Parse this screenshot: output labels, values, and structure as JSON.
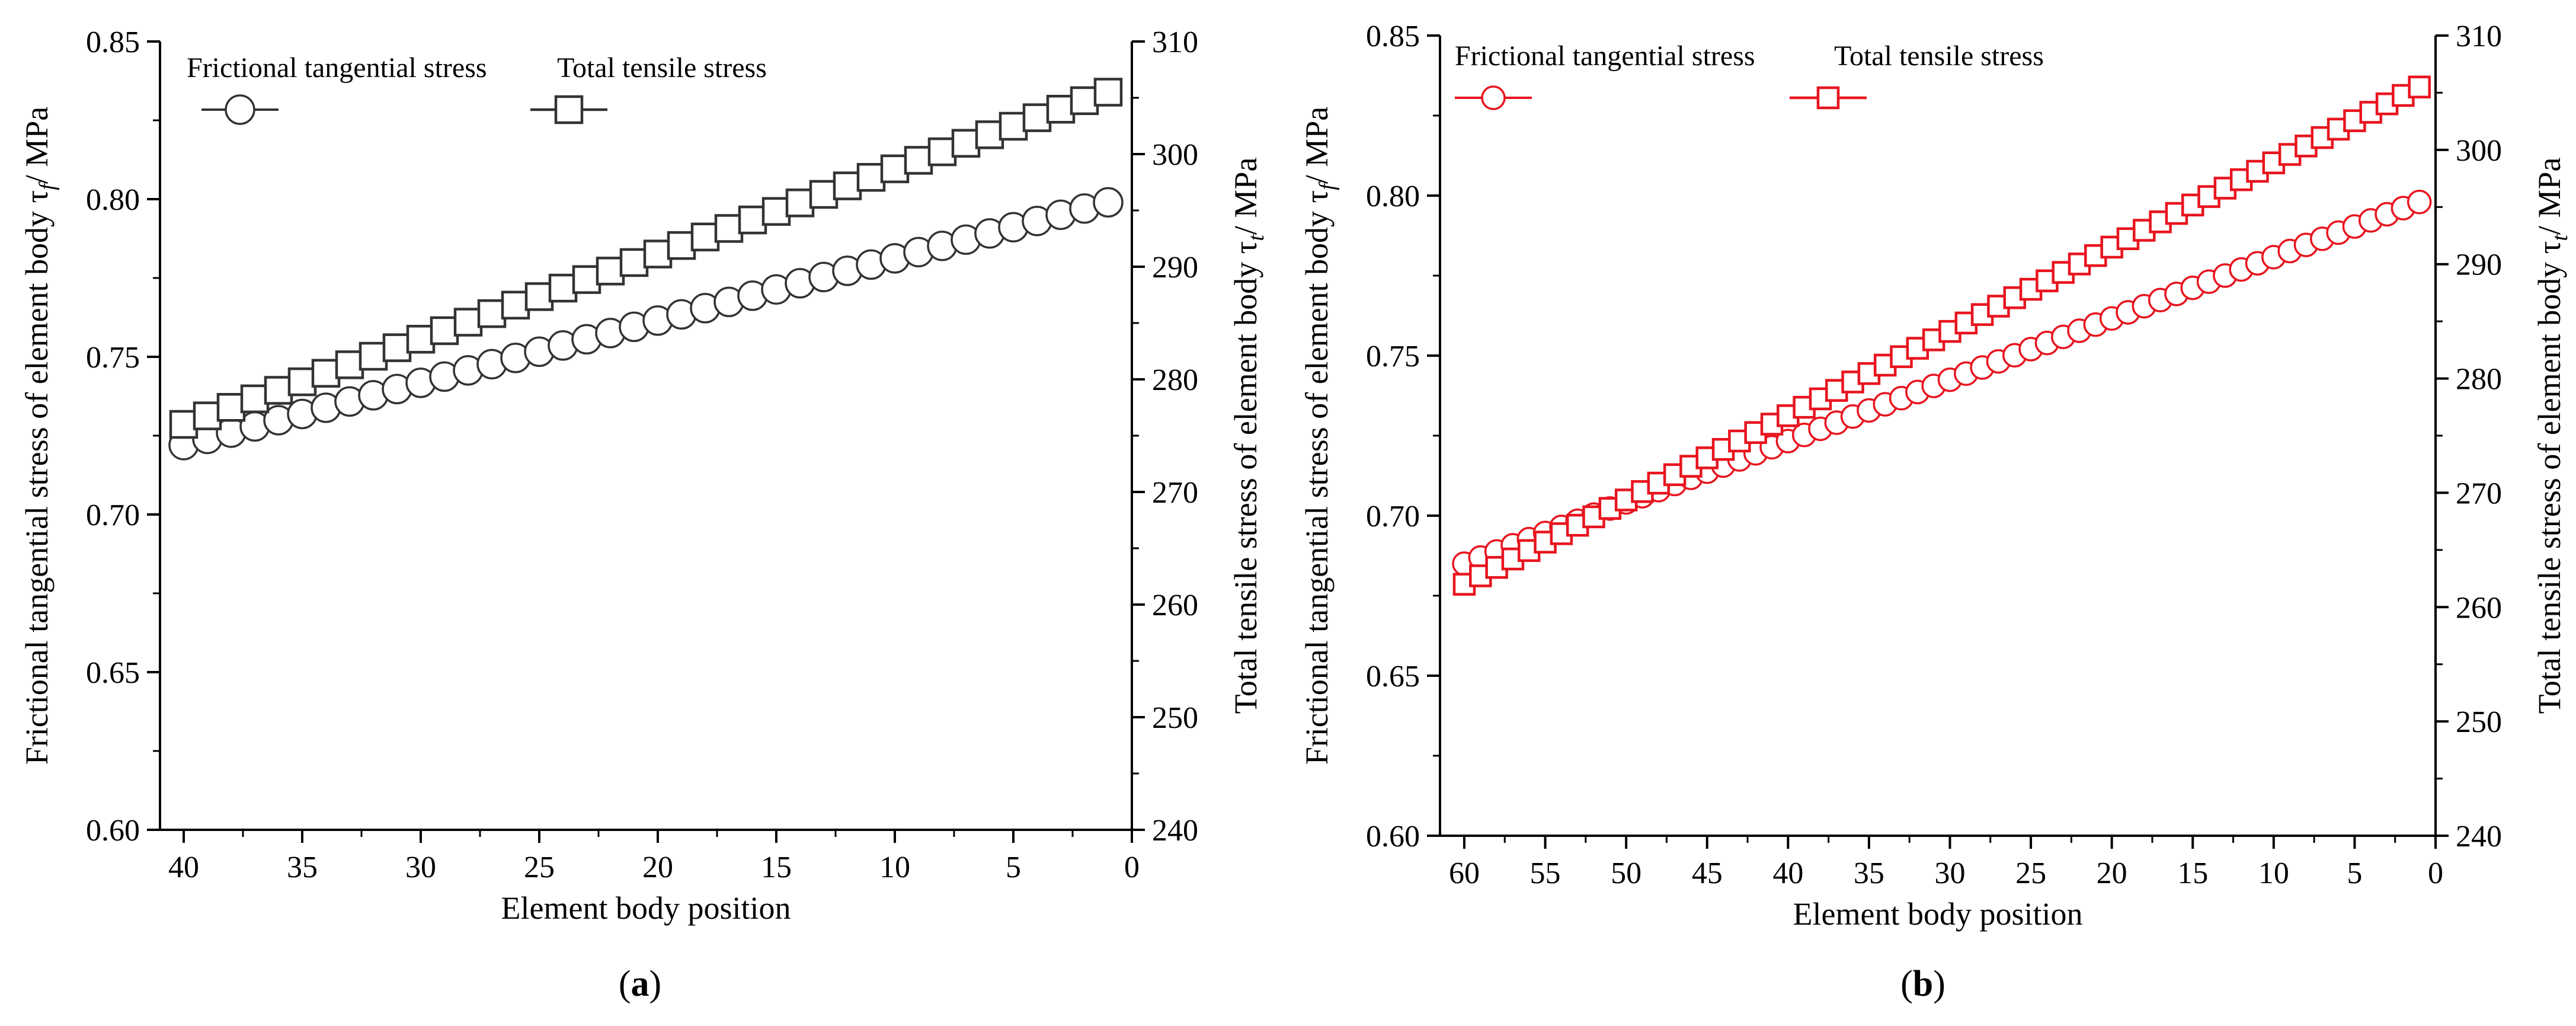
{
  "chart_data": [
    {
      "panel_label": "a",
      "type": "scatter",
      "colors": {
        "series_stroke": "#333333",
        "axis": "#000000"
      },
      "xlabel": "Element body position",
      "ylabel_left": "Frictional tangential stress of element body τf/ MPa",
      "ylabel_right": "Total tensile stress of element body τt/ MPa",
      "xlim": [
        41,
        0
      ],
      "ylim_left": [
        0.6,
        0.85
      ],
      "ylim_right": [
        240,
        310
      ],
      "x_ticks": [
        "40",
        "35",
        "30",
        "25",
        "20",
        "15",
        "10",
        "5",
        "0"
      ],
      "y_left_ticks": [
        "0.60",
        "0.65",
        "0.70",
        "0.75",
        "0.80",
        "0.85"
      ],
      "y_right_ticks": [
        "240",
        "250",
        "260",
        "270",
        "280",
        "290",
        "300",
        "310"
      ],
      "legend": [
        "Frictional tangential stress",
        "Total tensile stress"
      ],
      "series": [
        {
          "name": "Frictional tangential stress",
          "axis": "left",
          "marker": "circle",
          "x_start": 40,
          "x_end": 1,
          "y_start": 0.722,
          "y_end": 0.799
        },
        {
          "name": "Total tensile stress",
          "axis": "right",
          "marker": "square",
          "x_start": 40,
          "x_end": 1,
          "y_start": 276,
          "y_end": 305.5
        }
      ]
    },
    {
      "panel_label": "b",
      "type": "scatter",
      "colors": {
        "series_stroke": "#e8141e",
        "axis": "#000000"
      },
      "xlabel": "Element body position",
      "ylabel_left": "Frictional tangential stress of element body τf/ MPa",
      "ylabel_right": "Total tensile stress of element body τt/ MPa",
      "xlim": [
        61.5,
        0
      ],
      "ylim_left": [
        0.6,
        0.85
      ],
      "ylim_right": [
        240,
        310
      ],
      "x_ticks": [
        "60",
        "55",
        "50",
        "45",
        "40",
        "35",
        "30",
        "25",
        "20",
        "15",
        "10",
        "5",
        "0"
      ],
      "y_left_ticks": [
        "0.60",
        "0.65",
        "0.70",
        "0.75",
        "0.80",
        "0.85"
      ],
      "y_right_ticks": [
        "240",
        "250",
        "260",
        "270",
        "280",
        "290",
        "300",
        "310"
      ],
      "legend": [
        "Frictional tangential stress",
        "Total tensile stress"
      ],
      "series": [
        {
          "name": "Frictional tangential stress",
          "axis": "left",
          "marker": "circle",
          "x_start": 60,
          "x_end": 1,
          "y_start": 0.685,
          "y_end": 0.798
        },
        {
          "name": "Total tensile stress",
          "axis": "right",
          "marker": "square",
          "x_start": 60,
          "x_end": 1,
          "y_start": 262,
          "y_end": 305.5
        }
      ]
    }
  ]
}
